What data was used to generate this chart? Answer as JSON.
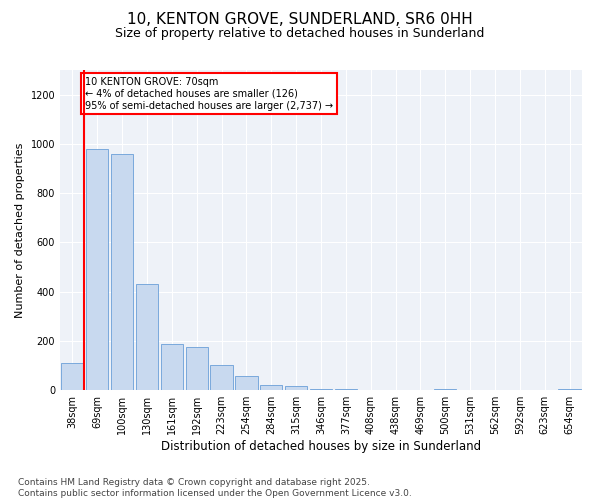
{
  "title": "10, KENTON GROVE, SUNDERLAND, SR6 0HH",
  "subtitle": "Size of property relative to detached houses in Sunderland",
  "xlabel": "Distribution of detached houses by size in Sunderland",
  "ylabel": "Number of detached properties",
  "categories": [
    "38sqm",
    "69sqm",
    "100sqm",
    "130sqm",
    "161sqm",
    "192sqm",
    "223sqm",
    "254sqm",
    "284sqm",
    "315sqm",
    "346sqm",
    "377sqm",
    "408sqm",
    "438sqm",
    "469sqm",
    "500sqm",
    "531sqm",
    "562sqm",
    "592sqm",
    "623sqm",
    "654sqm"
  ],
  "values": [
    110,
    980,
    960,
    430,
    185,
    175,
    100,
    55,
    22,
    18,
    5,
    5,
    0,
    0,
    0,
    5,
    0,
    0,
    0,
    0,
    5
  ],
  "bar_color": "#c8d9ef",
  "bar_edge_color": "#6a9fd8",
  "annotation_text": "10 KENTON GROVE: 70sqm\n← 4% of detached houses are smaller (126)\n95% of semi-detached houses are larger (2,737) →",
  "annotation_box_color": "white",
  "annotation_box_edge_color": "red",
  "vline_color": "red",
  "vline_x": 0.5,
  "ylim": [
    0,
    1300
  ],
  "yticks": [
    0,
    200,
    400,
    600,
    800,
    1000,
    1200
  ],
  "background_color": "#eef2f8",
  "footer_text": "Contains HM Land Registry data © Crown copyright and database right 2025.\nContains public sector information licensed under the Open Government Licence v3.0.",
  "title_fontsize": 11,
  "subtitle_fontsize": 9,
  "xlabel_fontsize": 8.5,
  "ylabel_fontsize": 8,
  "tick_fontsize": 7,
  "footer_fontsize": 6.5
}
